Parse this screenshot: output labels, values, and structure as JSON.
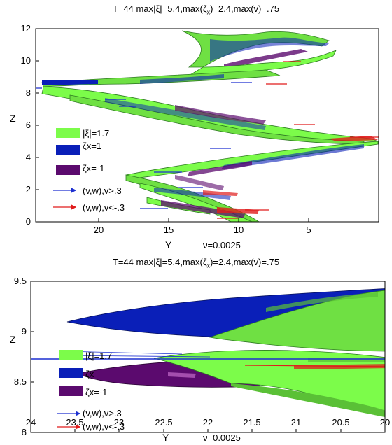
{
  "panels": [
    {
      "title_prefix": "T=44   max|ξ|=5.4,max(ζ",
      "title_sub": "x",
      "title_suffix": ")=2.4,max(v)=.75",
      "xlabel": "Y",
      "ylabel": "Z",
      "viscosity": "ν=0.0025",
      "xticks": [
        "20",
        "15",
        "10",
        "5"
      ],
      "yticks": [
        "0",
        "2",
        "4",
        "6",
        "8",
        "10",
        "12"
      ],
      "legend": [
        {
          "label": "|ξ|=1.7",
          "color": "#7CFC4A",
          "kind": "patch"
        },
        {
          "label": "ζx=1",
          "color": "#0A1FB8",
          "kind": "patch"
        },
        {
          "label": "ζx=-1",
          "color": "#5B0A6E",
          "kind": "patch"
        },
        {
          "label": "(v,w),v>.3",
          "color": "#1C2FD0",
          "kind": "arrow"
        },
        {
          "label": "(v,w),v<-.3",
          "color": "#E01B1B",
          "kind": "arrow"
        }
      ]
    },
    {
      "title_prefix": "T=44   max|ξ|=5.4,max(ζ",
      "title_sub": "x",
      "title_suffix": ")=2.4,max(v)=.75",
      "xlabel": "Y",
      "ylabel": "Z",
      "viscosity": "ν=0.0025",
      "xticks": [
        "24",
        "23.5",
        "23",
        "22.5",
        "22",
        "21.5",
        "21",
        "20.5",
        "20"
      ],
      "yticks": [
        "8",
        "8.5",
        "9",
        "9.5"
      ],
      "legend": [
        {
          "label": "|ξ|=1.7",
          "color": "#7CFC4A",
          "kind": "patch"
        },
        {
          "label": "ζx",
          "color": "#0A1FB8",
          "kind": "patch"
        },
        {
          "label": "ζx=-1",
          "color": "#5B0A6E",
          "kind": "patch"
        },
        {
          "label": "(v,w),v>.3",
          "color": "#1C2FD0",
          "kind": "arrow"
        },
        {
          "label": "(v,w),v<-.3",
          "color": "#E01B1B",
          "kind": "arrow"
        }
      ]
    }
  ],
  "colors": {
    "green": "#7CFC4A",
    "green_dark": "#3E9A2A",
    "blue": "#0A1FB8",
    "purple": "#5B0A6E",
    "arrow_blue": "#1C2FD0",
    "arrow_red": "#E01B1B"
  }
}
